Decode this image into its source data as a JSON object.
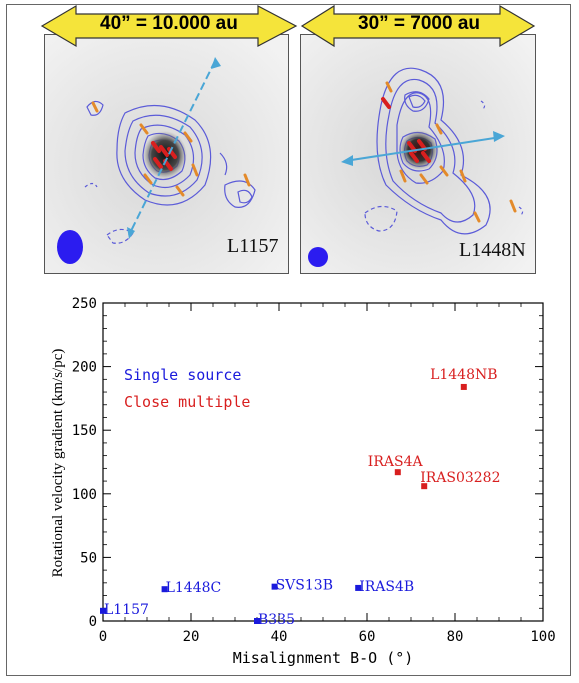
{
  "top_panels": {
    "left": {
      "banner": "40” = 10.000 au",
      "label": "L1157"
    },
    "right": {
      "banner": "30” = 7000 au",
      "label": "L1448N"
    }
  },
  "colors": {
    "single": "#1a1adc",
    "multiple": "#d81f1f",
    "contour": "#5b5bd8",
    "banner_fill": "#f5e43a",
    "axis_arrow": "#4aa6d6",
    "vectors": "#e38a2a"
  },
  "chart_data": {
    "type": "scatter",
    "xlabel": "Misalignment B-O (°)",
    "ylabel": "Rotational velocity gradient (km/s/pc)",
    "xlim": [
      0,
      100
    ],
    "ylim": [
      0,
      250
    ],
    "xticks": [
      0,
      20,
      40,
      60,
      80,
      100
    ],
    "yticks": [
      0,
      50,
      100,
      150,
      200,
      250
    ],
    "legend": [
      {
        "label": "Single source",
        "group": "single"
      },
      {
        "label": "Close multiple",
        "group": "multiple"
      }
    ],
    "series": [
      {
        "name": "Single source",
        "group": "single",
        "points": [
          {
            "label": "L1157",
            "x": 0,
            "y": 8
          },
          {
            "label": "L1448C",
            "x": 14,
            "y": 25
          },
          {
            "label": "B335",
            "x": 35,
            "y": 0
          },
          {
            "label": "SVS13B",
            "x": 39,
            "y": 27
          },
          {
            "label": "IRAS4B",
            "x": 58,
            "y": 26
          }
        ]
      },
      {
        "name": "Close multiple",
        "group": "multiple",
        "points": [
          {
            "label": "L1448NB",
            "x": 82,
            "y": 184
          },
          {
            "label": "IRAS4A",
            "x": 67,
            "y": 117
          },
          {
            "label": "IRAS03282",
            "x": 73,
            "y": 106
          }
        ]
      }
    ]
  }
}
